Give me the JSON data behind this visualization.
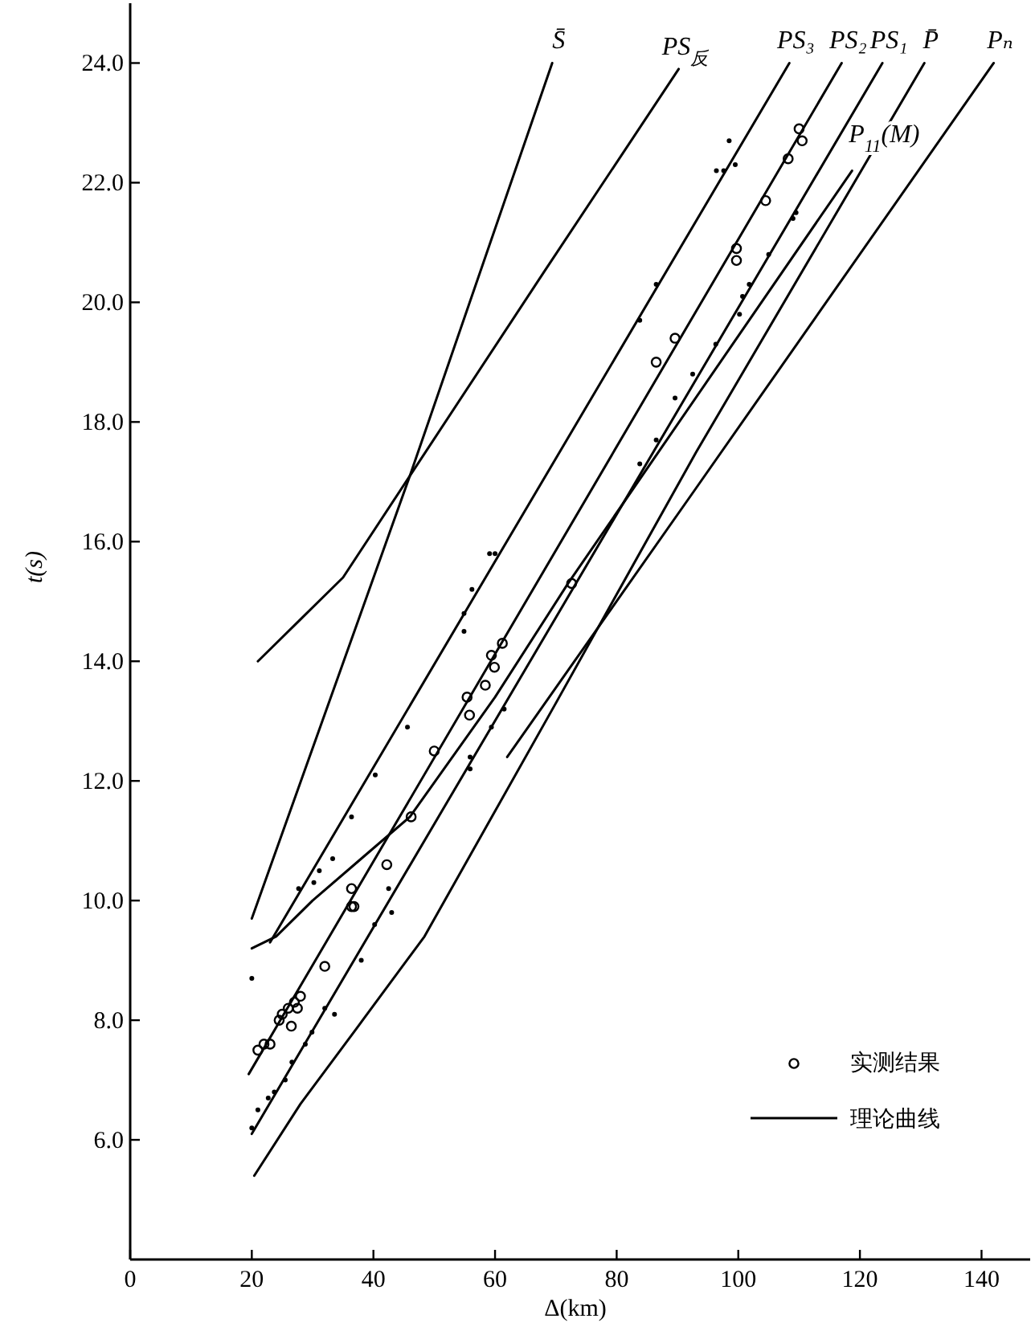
{
  "chart_data": {
    "type": "line",
    "xlabel": "Δ(km)",
    "ylabel": "t(s)",
    "xlim": [
      0,
      148
    ],
    "ylim": [
      4,
      25
    ],
    "xticks": [
      0,
      20,
      40,
      60,
      80,
      100,
      120,
      140
    ],
    "yticks": [
      {
        "value": 6,
        "label": "6.0"
      },
      {
        "value": 8,
        "label": "8.0"
      },
      {
        "value": 10,
        "label": "10.0"
      },
      {
        "value": 12,
        "label": "12.0"
      },
      {
        "value": 14,
        "label": "14.0"
      },
      {
        "value": 16,
        "label": "16.0"
      },
      {
        "value": 18,
        "label": "18.0"
      },
      {
        "value": 20,
        "label": "20.0"
      },
      {
        "value": 22,
        "label": "22.0"
      },
      {
        "value": 24,
        "label": "24.0"
      }
    ],
    "grid": false,
    "legend": "bottom right",
    "line_style": "solid",
    "annotations": [
      "理论曲线"
    ],
    "series": [
      {
        "name": "S̄",
        "type": "line",
        "color": "#000000",
        "x": [
          20,
          46,
          69.4
        ],
        "values": [
          9.7,
          17.1,
          24.0
        ]
      },
      {
        "name": "PS$_{反}$",
        "type": "line",
        "color": "#000000",
        "x": [
          21,
          28,
          35,
          46,
          68,
          90.2
        ],
        "values": [
          14.0,
          14.7,
          15.4,
          17.1,
          20.5,
          23.9
        ]
      },
      {
        "name": "PS₃",
        "type": "line",
        "color": "#000000",
        "x": [
          23,
          108.4
        ],
        "values": [
          9.3,
          24.0
        ]
      },
      {
        "name": "PS₂",
        "type": "line",
        "color": "#000000",
        "x": [
          19.5,
          117
        ],
        "values": [
          7.1,
          24.0
        ]
      },
      {
        "name": "PS₁",
        "type": "line",
        "color": "#000000",
        "x": [
          20,
          123.7
        ],
        "values": [
          6.1,
          24.0
        ]
      },
      {
        "name": "P̄",
        "type": "line",
        "color": "#000000",
        "x": [
          20.4,
          28,
          37.5,
          48.4,
          70,
          93.1,
          130.6
        ],
        "values": [
          5.4,
          6.6,
          7.9,
          9.4,
          13.3,
          17.5,
          24.0
        ]
      },
      {
        "name": "Pₙ",
        "type": "line",
        "color": "#000000",
        "x": [
          62,
          93.1,
          142
        ],
        "values": [
          12.4,
          16.9,
          24.0
        ]
      },
      {
        "name": "P$_{11}$(M)",
        "type": "line",
        "color": "#000000",
        "x": [
          20,
          24,
          30,
          38,
          46,
          60,
          72,
          118.7
        ],
        "values": [
          9.2,
          9.4,
          10.0,
          10.7,
          11.4,
          13.4,
          15.3,
          22.2
        ]
      },
      {
        "name": "实测结果",
        "type": "scatter",
        "marker": "circle",
        "color": "#000000",
        "x": [
          21,
          22,
          23,
          24.5,
          25,
          26,
          26.5,
          27,
          27.5,
          28,
          32,
          36.4,
          36.8,
          36.4,
          42.2,
          46.2,
          50,
          55.4,
          55.8,
          58.4,
          59.4,
          59.9,
          61.2,
          72.6,
          86.5,
          89.6,
          99.7,
          99.7,
          104.5,
          108.2,
          110,
          110.5
        ],
        "values": [
          7.5,
          7.6,
          7.6,
          8.0,
          8.1,
          8.2,
          7.9,
          8.3,
          8.2,
          8.4,
          8.9,
          9.9,
          9.9,
          10.2,
          10.6,
          11.4,
          12.5,
          13.4,
          13.1,
          13.6,
          14.1,
          13.9,
          14.3,
          15.3,
          19.0,
          19.4,
          20.9,
          20.7,
          21.7,
          22.4,
          22.9,
          22.7
        ]
      },
      {
        "type": "scatter",
        "marker": "circle",
        "color": "#000000",
        "x": [
          20,
          27.7,
          30.2,
          31.1,
          33.3,
          36.4,
          40.3,
          45.6,
          54.9,
          54.9,
          56.2,
          59.1,
          60,
          83.8,
          86.5,
          96.4,
          97.6,
          98.5,
          99.5,
          20,
          21,
          22.7,
          23.7,
          25.5,
          26.6,
          28.8,
          29.9,
          32,
          33.6,
          38,
          40.2,
          43,
          42.5,
          55.9,
          55.9,
          59.4,
          61.5,
          83.8,
          86.5,
          89.6,
          92.5,
          96.3,
          100.2,
          100.7,
          101.8,
          105,
          109.5,
          109
        ],
        "values": [
          8.7,
          10.2,
          10.3,
          10.5,
          10.7,
          11.4,
          12.1,
          12.9,
          14.8,
          14.5,
          15.2,
          15.8,
          15.8,
          19.7,
          20.3,
          22.2,
          22.2,
          22.7,
          22.3,
          6.2,
          6.5,
          6.7,
          6.8,
          7.0,
          7.3,
          7.6,
          7.8,
          8.2,
          8.1,
          9.0,
          9.6,
          9.8,
          10.2,
          12.4,
          12.2,
          12.9,
          13.2,
          17.3,
          17.7,
          18.4,
          18.8,
          19.3,
          19.8,
          20.1,
          20.3,
          20.8,
          21.5,
          21.4
        ]
      }
    ]
  }
}
